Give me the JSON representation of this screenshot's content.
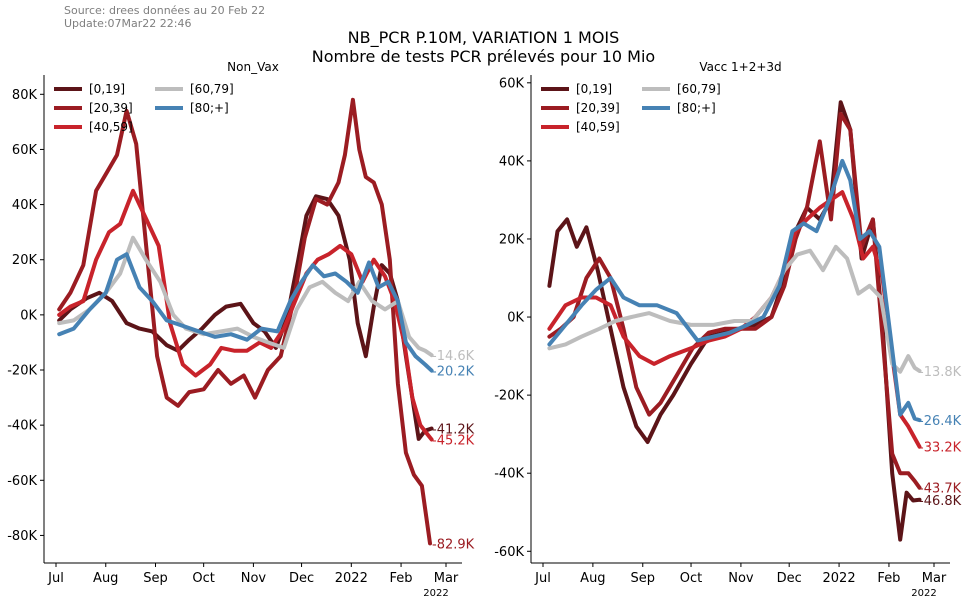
{
  "header": {
    "source_lines": [
      "Source: drees données au 20 Feb 22",
      "Update:07Mar22 22:46"
    ],
    "title_line1": "NB_PCR P.10M, VARIATION 1 MOIS",
    "title_line2": "Nombre de tests PCR prélevés pour 10 Mio"
  },
  "chart_data": [
    {
      "type": "line",
      "title": "Non_Vax",
      "xlabel": "",
      "ylabel": "",
      "x_ticks": [
        "Jul",
        "Aug",
        "Sep",
        "Oct",
        "Nov",
        "Dec",
        "2022",
        "Feb",
        "Mar"
      ],
      "x_sub_label": "2022",
      "x_range": [
        "2021-07-01",
        "2022-03-01"
      ],
      "ylim": [
        -90000,
        87000
      ],
      "y_ticks": [
        -80000,
        -60000,
        -40000,
        -20000,
        0,
        20000,
        40000,
        60000,
        80000
      ],
      "y_tick_labels": [
        "-80K",
        "-60K",
        "-40K",
        "-20K",
        "0K",
        "20K",
        "40K",
        "60K",
        "80K"
      ],
      "legend": "top-left",
      "grid": false,
      "series": [
        {
          "name": "[0,19]",
          "color": "#5c1418",
          "end_label": "-41.2K",
          "x": [
            "2021-07-03",
            "2021-07-10",
            "2021-07-20",
            "2021-07-28",
            "2021-08-05",
            "2021-08-14",
            "2021-08-22",
            "2021-08-30",
            "2021-09-08",
            "2021-09-15",
            "2021-09-22",
            "2021-09-30",
            "2021-10-08",
            "2021-10-15",
            "2021-10-24",
            "2021-11-01",
            "2021-11-08",
            "2021-11-15",
            "2021-11-22",
            "2021-11-29",
            "2021-12-04",
            "2021-12-10",
            "2021-12-17",
            "2021-12-24",
            "2021-12-31",
            "2022-01-05",
            "2022-01-10",
            "2022-01-15",
            "2022-01-20",
            "2022-01-25",
            "2022-01-30",
            "2022-02-04",
            "2022-02-08",
            "2022-02-12",
            "2022-02-16",
            "2022-02-20"
          ],
          "y": [
            -2000,
            2000,
            6000,
            8000,
            5000,
            -3000,
            -5000,
            -6000,
            -11000,
            -13000,
            -9000,
            -5000,
            0,
            3000,
            4000,
            -3000,
            -6000,
            -12000,
            -1000,
            20000,
            36000,
            43000,
            42000,
            36000,
            20000,
            -3000,
            -15000,
            3000,
            18000,
            15000,
            5000,
            -15000,
            -30000,
            -45000,
            -42000,
            -41200
          ]
        },
        {
          "name": "[20,39]",
          "color": "#9b1c22",
          "end_label": "-82.9K",
          "x": [
            "2021-07-03",
            "2021-07-10",
            "2021-07-18",
            "2021-07-26",
            "2021-08-02",
            "2021-08-08",
            "2021-08-14",
            "2021-08-20",
            "2021-08-27",
            "2021-09-02",
            "2021-09-08",
            "2021-09-15",
            "2021-09-22",
            "2021-10-01",
            "2021-10-10",
            "2021-10-18",
            "2021-10-26",
            "2021-11-02",
            "2021-11-10",
            "2021-11-18",
            "2021-11-26",
            "2021-12-03",
            "2021-12-10",
            "2021-12-17",
            "2021-12-24",
            "2021-12-28",
            "2022-01-02",
            "2022-01-06",
            "2022-01-10",
            "2022-01-15",
            "2022-01-20",
            "2022-01-25",
            "2022-01-30",
            "2022-02-04",
            "2022-02-09",
            "2022-02-14",
            "2022-02-19"
          ],
          "y": [
            2000,
            8000,
            18000,
            45000,
            52000,
            58000,
            74000,
            62000,
            20000,
            -15000,
            -30000,
            -33000,
            -28000,
            -27000,
            -20000,
            -25000,
            -22000,
            -30000,
            -20000,
            -15000,
            5000,
            28000,
            42000,
            40000,
            48000,
            58000,
            78000,
            60000,
            50000,
            48000,
            40000,
            20000,
            -25000,
            -50000,
            -58000,
            -62000,
            -82900
          ]
        },
        {
          "name": "[40,59]",
          "color": "#c8232b",
          "end_label": "-45.2K",
          "x": [
            "2021-07-03",
            "2021-07-10",
            "2021-07-18",
            "2021-07-26",
            "2021-08-03",
            "2021-08-10",
            "2021-08-18",
            "2021-08-26",
            "2021-09-03",
            "2021-09-10",
            "2021-09-18",
            "2021-09-26",
            "2021-10-05",
            "2021-10-12",
            "2021-10-20",
            "2021-10-28",
            "2021-11-05",
            "2021-11-12",
            "2021-11-20",
            "2021-11-27",
            "2021-12-04",
            "2021-12-11",
            "2021-12-18",
            "2021-12-25",
            "2022-01-01",
            "2022-01-08",
            "2022-01-15",
            "2022-01-22",
            "2022-01-28",
            "2022-02-03",
            "2022-02-08",
            "2022-02-13",
            "2022-02-17",
            "2022-02-20"
          ],
          "y": [
            0,
            3000,
            5000,
            20000,
            30000,
            33000,
            45000,
            35000,
            25000,
            -3000,
            -18000,
            -22000,
            -18000,
            -12000,
            -13000,
            -13000,
            -10000,
            -12000,
            -5000,
            5000,
            15000,
            20000,
            22000,
            25000,
            22000,
            12000,
            20000,
            14000,
            5000,
            -10000,
            -30000,
            -40000,
            -43000,
            -45200
          ]
        },
        {
          "name": "[60,79]",
          "color": "#bdbdbd",
          "end_label": "-14.6K",
          "x": [
            "2021-07-03",
            "2021-07-12",
            "2021-07-22",
            "2021-08-01",
            "2021-08-10",
            "2021-08-18",
            "2021-08-26",
            "2021-09-04",
            "2021-09-12",
            "2021-09-20",
            "2021-10-01",
            "2021-10-12",
            "2021-10-22",
            "2021-11-01",
            "2021-11-10",
            "2021-11-20",
            "2021-11-28",
            "2021-12-06",
            "2021-12-14",
            "2021-12-22",
            "2021-12-30",
            "2022-01-06",
            "2022-01-14",
            "2022-01-22",
            "2022-01-30",
            "2022-02-06",
            "2022-02-12",
            "2022-02-16",
            "2022-02-20"
          ],
          "y": [
            -3000,
            -2000,
            2000,
            8000,
            15000,
            28000,
            20000,
            12000,
            0,
            -5000,
            -7000,
            -6000,
            -5000,
            -8000,
            -10000,
            -12000,
            2000,
            10000,
            12000,
            8000,
            5000,
            12000,
            5000,
            2000,
            5000,
            -8000,
            -12000,
            -13000,
            -14600
          ]
        },
        {
          "name": "[80;+]",
          "color": "#4682b4",
          "end_label": "-20.2K",
          "x": [
            "2021-07-03",
            "2021-07-12",
            "2021-07-22",
            "2021-08-01",
            "2021-08-08",
            "2021-08-14",
            "2021-08-22",
            "2021-08-30",
            "2021-09-08",
            "2021-09-18",
            "2021-09-28",
            "2021-10-08",
            "2021-10-18",
            "2021-10-28",
            "2021-11-06",
            "2021-11-16",
            "2021-11-24",
            "2021-12-01",
            "2021-12-08",
            "2021-12-15",
            "2021-12-22",
            "2021-12-29",
            "2022-01-05",
            "2022-01-12",
            "2022-01-18",
            "2022-01-24",
            "2022-01-30",
            "2022-02-04",
            "2022-02-10",
            "2022-02-16",
            "2022-02-20"
          ],
          "y": [
            -7000,
            -5000,
            2000,
            8000,
            20000,
            22000,
            10000,
            5000,
            -2000,
            -4000,
            -6000,
            -8000,
            -7000,
            -9000,
            -5000,
            -6000,
            5000,
            12000,
            18000,
            14000,
            15000,
            12000,
            8000,
            19000,
            10000,
            12000,
            5000,
            -10000,
            -15000,
            -18000,
            -20200
          ]
        }
      ]
    },
    {
      "type": "line",
      "title": "Vacc 1+2+3d",
      "xlabel": "",
      "ylabel": "",
      "x_ticks": [
        "Jul",
        "Aug",
        "Sep",
        "Oct",
        "Nov",
        "Dec",
        "2022",
        "Feb",
        "Mar"
      ],
      "x_sub_label": "2022",
      "x_range": [
        "2021-07-01",
        "2022-03-01"
      ],
      "ylim": [
        -63000,
        62000
      ],
      "y_ticks": [
        -60000,
        -40000,
        -20000,
        0,
        20000,
        40000,
        60000
      ],
      "y_tick_labels": [
        "-60K",
        "-40K",
        "-20K",
        "0K",
        "20K",
        "40K",
        "60K"
      ],
      "legend": "top-left",
      "grid": false,
      "series": [
        {
          "name": "[0,19]",
          "color": "#5c1418",
          "end_label": "-46.8K",
          "x": [
            "2021-07-05",
            "2021-07-10",
            "2021-07-16",
            "2021-07-22",
            "2021-07-28",
            "2021-08-04",
            "2021-08-12",
            "2021-08-20",
            "2021-08-28",
            "2021-09-04",
            "2021-09-12",
            "2021-09-20",
            "2021-10-01",
            "2021-10-12",
            "2021-10-22",
            "2021-11-01",
            "2021-11-10",
            "2021-11-20",
            "2021-11-28",
            "2021-12-05",
            "2021-12-12",
            "2021-12-20",
            "2021-12-27",
            "2022-01-02",
            "2022-01-08",
            "2022-01-15",
            "2022-01-22",
            "2022-01-28",
            "2022-02-03",
            "2022-02-08",
            "2022-02-12",
            "2022-02-16",
            "2022-02-20"
          ],
          "y": [
            8000,
            22000,
            25000,
            18000,
            23000,
            12000,
            -3000,
            -18000,
            -28000,
            -32000,
            -25000,
            -20000,
            -12000,
            -5000,
            -4000,
            -3000,
            -2000,
            0,
            10000,
            22000,
            28000,
            25000,
            30000,
            55000,
            48000,
            15000,
            25000,
            -2000,
            -40000,
            -57000,
            -45000,
            -47000,
            -46800
          ]
        },
        {
          "name": "[20,39]",
          "color": "#9b1c22",
          "end_label": "-43.7K",
          "x": [
            "2021-07-05",
            "2021-07-12",
            "2021-07-20",
            "2021-07-28",
            "2021-08-05",
            "2021-08-12",
            "2021-08-20",
            "2021-08-28",
            "2021-09-05",
            "2021-09-12",
            "2021-09-22",
            "2021-10-02",
            "2021-10-12",
            "2021-10-22",
            "2021-11-01",
            "2021-11-10",
            "2021-11-20",
            "2021-11-28",
            "2021-12-05",
            "2021-12-12",
            "2021-12-20",
            "2021-12-27",
            "2022-01-02",
            "2022-01-08",
            "2022-01-15",
            "2022-01-22",
            "2022-01-28",
            "2022-02-03",
            "2022-02-08",
            "2022-02-13",
            "2022-02-17",
            "2022-02-20"
          ],
          "y": [
            -5000,
            -3000,
            0,
            10000,
            15000,
            10000,
            -3000,
            -18000,
            -25000,
            -22000,
            -15000,
            -8000,
            -4000,
            -3000,
            -3000,
            -3000,
            0,
            8000,
            20000,
            28000,
            45000,
            25000,
            52000,
            48000,
            18000,
            25000,
            -5000,
            -35000,
            -40000,
            -40000,
            -42000,
            -43700
          ]
        },
        {
          "name": "[40,59]",
          "color": "#c8232b",
          "end_label": "-33.2K",
          "x": [
            "2021-07-05",
            "2021-07-15",
            "2021-07-25",
            "2021-08-03",
            "2021-08-12",
            "2021-08-20",
            "2021-08-30",
            "2021-09-08",
            "2021-09-18",
            "2021-10-01",
            "2021-10-12",
            "2021-10-22",
            "2021-11-01",
            "2021-11-10",
            "2021-11-20",
            "2021-11-28",
            "2021-12-05",
            "2021-12-12",
            "2021-12-20",
            "2021-12-27",
            "2022-01-03",
            "2022-01-10",
            "2022-01-16",
            "2022-01-22",
            "2022-01-28",
            "2022-02-03",
            "2022-02-08",
            "2022-02-13",
            "2022-02-17",
            "2022-02-20"
          ],
          "y": [
            -3000,
            3000,
            5000,
            5000,
            3000,
            -5000,
            -10000,
            -12000,
            -10000,
            -8000,
            -6000,
            -5000,
            -3000,
            0,
            5000,
            12000,
            22000,
            25000,
            28000,
            30000,
            32000,
            25000,
            15000,
            18000,
            10000,
            -10000,
            -25000,
            -28000,
            -31000,
            -33200
          ]
        },
        {
          "name": "[60,79]",
          "color": "#bdbdbd",
          "end_label": "-13.8K",
          "x": [
            "2021-07-05",
            "2021-07-15",
            "2021-07-25",
            "2021-08-05",
            "2021-08-15",
            "2021-08-25",
            "2021-09-05",
            "2021-09-18",
            "2021-10-01",
            "2021-10-15",
            "2021-10-28",
            "2021-11-08",
            "2021-11-20",
            "2021-11-28",
            "2021-12-06",
            "2021-12-14",
            "2021-12-22",
            "2021-12-30",
            "2022-01-06",
            "2022-01-13",
            "2022-01-20",
            "2022-01-27",
            "2022-02-03",
            "2022-02-08",
            "2022-02-13",
            "2022-02-17",
            "2022-02-20"
          ],
          "y": [
            -8000,
            -7000,
            -5000,
            -3000,
            -1000,
            0,
            1000,
            -1000,
            -2000,
            -2000,
            -1000,
            -1000,
            5000,
            12000,
            16000,
            17000,
            12000,
            18000,
            15000,
            6000,
            8000,
            5000,
            -12000,
            -14000,
            -10000,
            -13000,
            -13800
          ]
        },
        {
          "name": "[80;+]",
          "color": "#4682b4",
          "end_label": "-26.4K",
          "x": [
            "2021-07-05",
            "2021-07-15",
            "2021-07-25",
            "2021-08-03",
            "2021-08-12",
            "2021-08-20",
            "2021-08-30",
            "2021-09-10",
            "2021-09-22",
            "2021-10-05",
            "2021-10-15",
            "2021-10-25",
            "2021-11-05",
            "2021-11-15",
            "2021-11-25",
            "2021-12-03",
            "2021-12-10",
            "2021-12-18",
            "2021-12-26",
            "2022-01-03",
            "2022-01-08",
            "2022-01-14",
            "2022-01-20",
            "2022-01-26",
            "2022-02-02",
            "2022-02-08",
            "2022-02-13",
            "2022-02-17",
            "2022-02-20"
          ],
          "y": [
            -7000,
            -2000,
            3000,
            7000,
            10000,
            5000,
            3000,
            3000,
            1000,
            -6000,
            -5000,
            -4000,
            -2000,
            0,
            8000,
            22000,
            24000,
            22000,
            30000,
            40000,
            35000,
            20000,
            22000,
            18000,
            -5000,
            -25000,
            -22000,
            -26000,
            -26400
          ]
        }
      ]
    }
  ]
}
